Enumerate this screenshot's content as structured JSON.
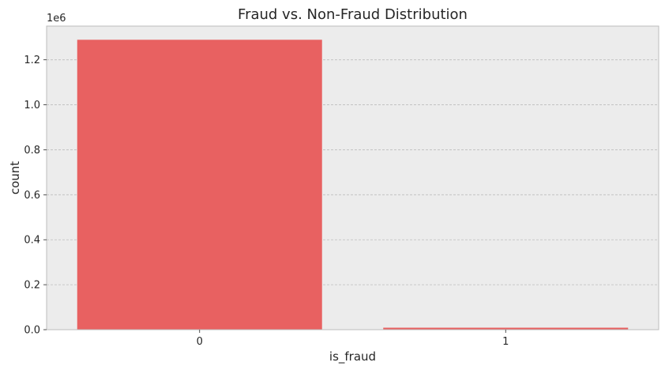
{
  "chart_data": {
    "type": "bar",
    "title": "Fraud vs. Non-Fraud Distribution",
    "xlabel": "is_fraud",
    "ylabel": "count",
    "categories": [
      "0",
      "1"
    ],
    "values": [
      1289169,
      7506
    ],
    "ylim": [
      0,
      1350000
    ],
    "y_ticks": [
      0,
      200000,
      400000,
      600000,
      800000,
      1000000,
      1200000
    ],
    "y_tick_labels": [
      "0.0",
      "0.2",
      "0.4",
      "0.6",
      "0.8",
      "1.0",
      "1.2"
    ],
    "y_offset_label": "1e6",
    "grid": true,
    "legend": "none",
    "colors": {
      "bar": "#e86161",
      "plot_background": "#ececec",
      "grid": "#bdbdbd",
      "frame": "#bcbcbc",
      "text": "#262626"
    }
  }
}
